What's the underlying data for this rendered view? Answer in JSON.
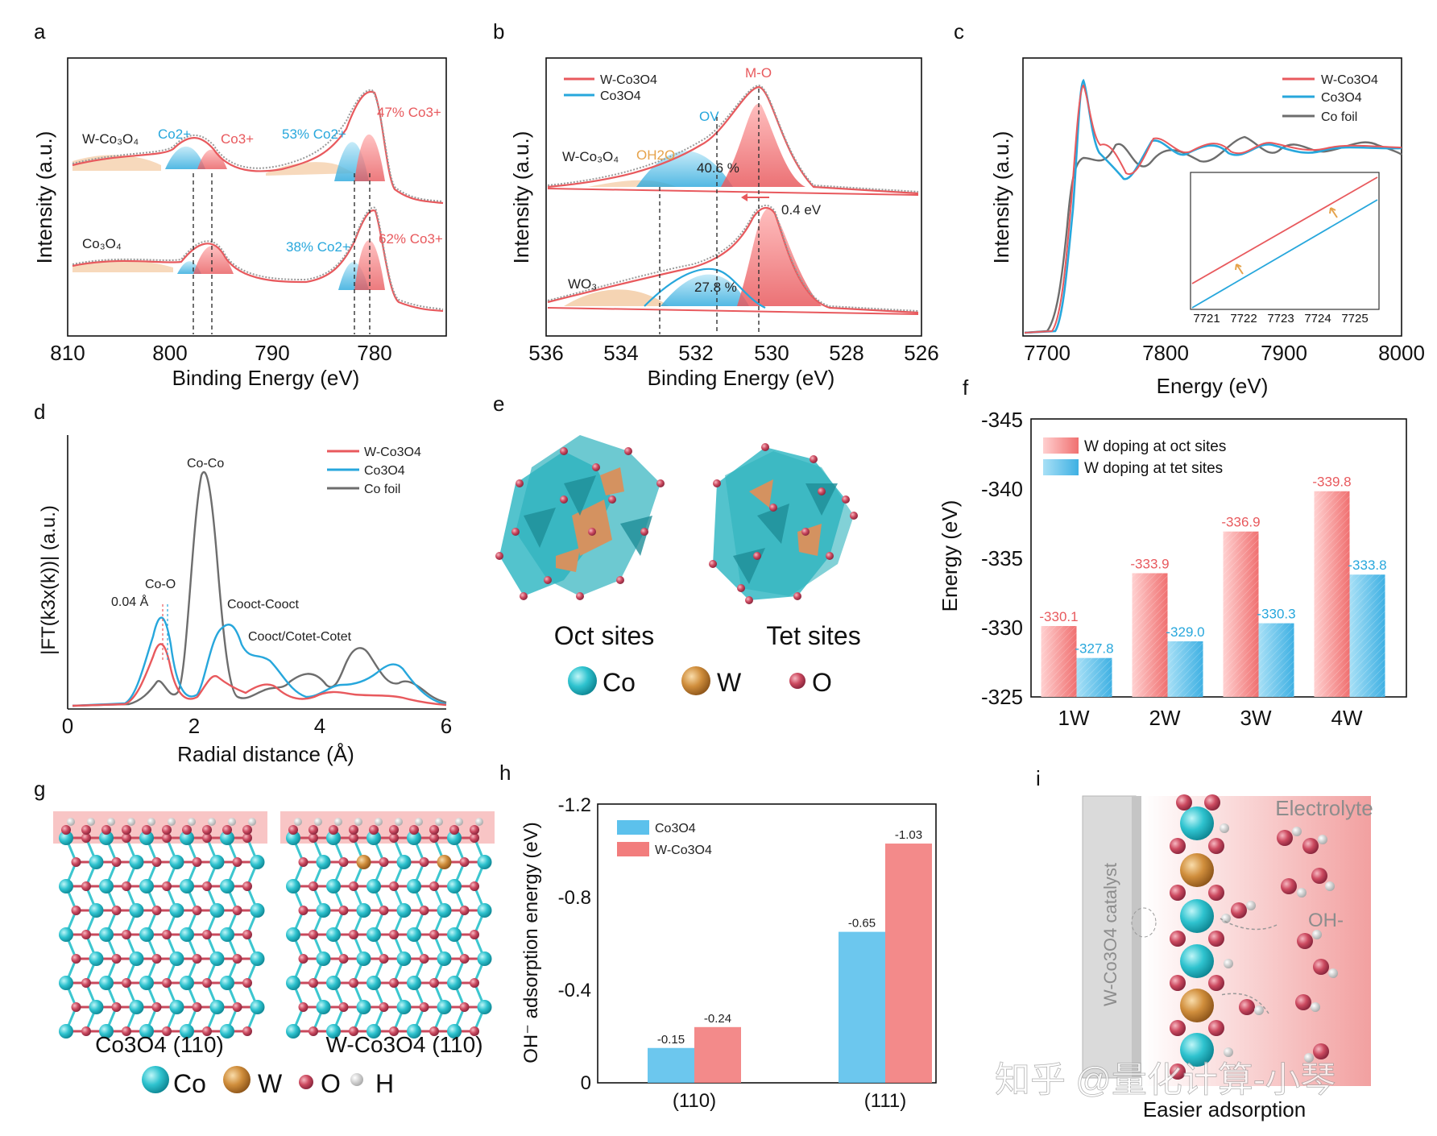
{
  "figure": {
    "panel_letters": [
      "a",
      "b",
      "c",
      "d",
      "e",
      "f",
      "g",
      "h",
      "i"
    ],
    "colors": {
      "red": "#e8595d",
      "red_fill": "#f3a3a3",
      "blue": "#27a7dc",
      "blue_fill": "#8fd3f1",
      "gray": "#6d6d6d",
      "orange": "#eab07c",
      "cyan_atom": "#3cc6cf",
      "brown_atom": "#c98a3e",
      "oxygen": "#c94a5c"
    },
    "watermark": "知乎 @量化计算-小琴"
  },
  "chart_data": [
    {
      "id": "a",
      "type": "line",
      "xlabel": "Binding Energy (eV)",
      "ylabel": "Intensity (a.u.)",
      "xlim": [
        810,
        773
      ],
      "xticks": [
        810,
        800,
        790,
        780
      ],
      "series": [
        {
          "name": "W-Co3O4",
          "label_text": "W-Co₃O₄"
        },
        {
          "name": "Co3O4",
          "label_text": "Co₃O₄"
        }
      ],
      "annotations": [
        "Co2+",
        "Co3+",
        "53% Co2+",
        "47% Co3+",
        "38% Co2+",
        "62% Co3+"
      ],
      "reference_lines": [
        797.5,
        795.8,
        781.8,
        780.3
      ]
    },
    {
      "id": "b",
      "type": "line",
      "xlabel": "Binding Energy (eV)",
      "ylabel": "Intensity (a.u.)",
      "xlim": [
        536,
        526
      ],
      "xticks": [
        536,
        534,
        532,
        530,
        528,
        526
      ],
      "legend": [
        "W-Co3O4",
        "Co3O4"
      ],
      "series": [
        {
          "name": "W-Co3O4",
          "label_text": "W-Co₃O₄"
        },
        {
          "name": "WO3",
          "label_text": "WO₃"
        }
      ],
      "annotations": [
        "M-O",
        "OV",
        "OH2O",
        "40.6 %",
        "27.8 %",
        "0.4 eV"
      ],
      "reference_lines": [
        533.1,
        531.6,
        530.4
      ]
    },
    {
      "id": "c",
      "type": "line",
      "xlabel": "Energy (eV)",
      "ylabel": "Intensity (a.u.)",
      "xlim": [
        7680,
        8000
      ],
      "xticks": [
        7700,
        7800,
        7900,
        8000
      ],
      "legend": [
        "W-Co3O4",
        "Co3O4",
        "Co foil"
      ],
      "inset": {
        "xticks": [
          7721,
          7722,
          7723,
          7724,
          7725
        ]
      }
    },
    {
      "id": "d",
      "type": "line",
      "xlabel": "Radial distance (Å)",
      "ylabel": "|FT(k3x(k))| (a.u.)",
      "xlim": [
        0,
        6
      ],
      "xticks": [
        0,
        2,
        4,
        6
      ],
      "legend": [
        "W-Co3O4",
        "Co3O4",
        "Co foil"
      ],
      "annotations": [
        "Co-Co",
        "Co-O",
        "0.04 Å",
        "Cooct-Cooct",
        "Cooct/Cotet-Cotet"
      ],
      "peaks": [
        {
          "series": "Co foil",
          "x": 2.2,
          "y": 1.0
        },
        {
          "series": "Co3O4",
          "x": 1.55,
          "y": 0.42
        },
        {
          "series": "W-Co3O4",
          "x": 1.58,
          "y": 0.36
        }
      ]
    },
    {
      "id": "f",
      "type": "bar",
      "ylabel": "Energy (eV)",
      "categories": [
        "1W",
        "2W",
        "3W",
        "4W"
      ],
      "ylim": [
        -325,
        -345
      ],
      "yticks": [
        -325,
        -330,
        -335,
        -340,
        -345
      ],
      "series": [
        {
          "name": "W doping at oct sites",
          "values": [
            -330.1,
            -333.9,
            -336.9,
            -339.8
          ]
        },
        {
          "name": "W doping at tet sites",
          "values": [
            -327.8,
            -329.0,
            -330.3,
            -333.8
          ]
        }
      ],
      "value_labels": {
        "oct": [
          "-330.1",
          "-333.9",
          "-336.9",
          "-339.8"
        ],
        "tet": [
          "-327.8",
          "-329.0",
          "-330.3",
          "-333.8"
        ]
      }
    },
    {
      "id": "h",
      "type": "bar",
      "ylabel": "OH⁻ adsorption energy (eV)",
      "categories": [
        "(110)",
        "(111)"
      ],
      "ylim": [
        0.0,
        -1.2
      ],
      "yticks": [
        0.0,
        -0.4,
        -0.8,
        -1.2
      ],
      "series": [
        {
          "name": "Co3O4",
          "values": [
            -0.15,
            -0.65
          ]
        },
        {
          "name": "W-Co3O4",
          "values": [
            -0.24,
            -1.03
          ]
        }
      ],
      "value_labels": {
        "Co3O4": [
          "-0.15",
          "-0.65"
        ],
        "W-Co3O4": [
          "-0.24",
          "-1.03"
        ]
      }
    }
  ],
  "panel_e": {
    "labels": [
      "Oct sites",
      "Tet sites"
    ],
    "legend": [
      "Co",
      "W",
      "O"
    ]
  },
  "panel_g": {
    "labels": [
      "Co3O4 (110)",
      "W-Co3O4 (110)"
    ],
    "legend": [
      "Co",
      "W",
      "O",
      "H"
    ]
  },
  "panel_i": {
    "electrolyte": "Electrolyte",
    "oh": "OH-",
    "catalyst": "W-Co3O4 catalyst",
    "caption": "Easier adsorption"
  }
}
